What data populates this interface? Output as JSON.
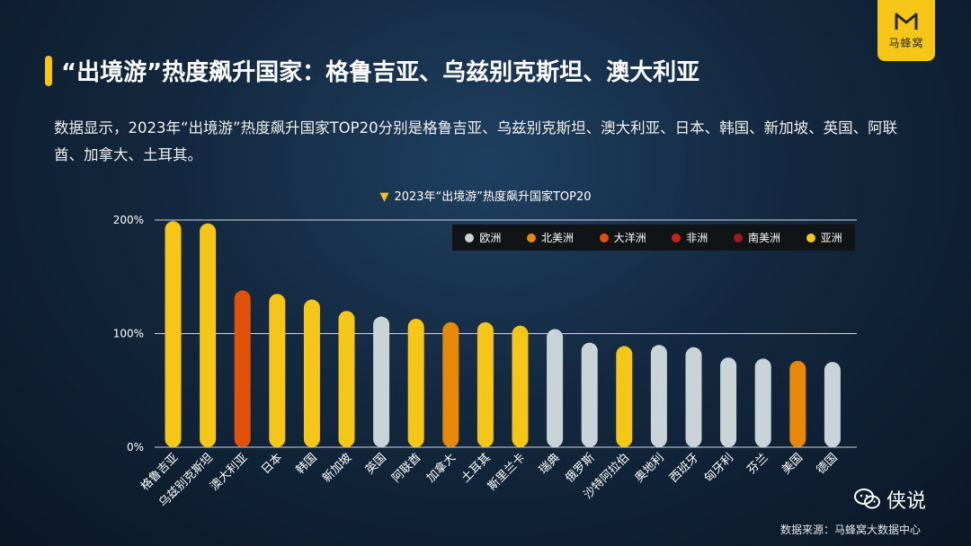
{
  "brand": {
    "logo_text": "马蜂窝"
  },
  "header": {
    "title": "“出境游”热度飙升国家：格鲁吉亚、乌兹别克斯坦、澳大利亚",
    "description": "数据显示，2023年“出境游”热度飙升国家TOP20分别是格鲁吉亚、乌兹别克斯坦、澳大利亚、日本、韩国、新加坡、英国、阿联酋、加拿大、土耳其。"
  },
  "footer": {
    "source": "数据来源：马蜂窝大数据中心",
    "watermark": "侠说"
  },
  "colors": {
    "欧洲": "#c9d3d8",
    "北美洲": "#e8880a",
    "大洋洲": "#e0520a",
    "非洲": "#c8241a",
    "南美洲": "#9e1a1a",
    "亚洲": "#f5c518"
  },
  "chart_data": {
    "type": "bar",
    "title": "2023年“出境游”热度飙升国家TOP20",
    "ylim": [
      0,
      200
    ],
    "yticks": [
      0,
      100,
      200
    ],
    "ytick_labels": [
      "0%",
      "100%",
      "200%"
    ],
    "grid": true,
    "legend_position": "top-right",
    "legend": [
      "欧洲",
      "北美洲",
      "大洋洲",
      "非洲",
      "南美洲",
      "亚洲"
    ],
    "categories": [
      "格鲁吉亚",
      "乌兹别克斯坦",
      "澳大利亚",
      "日本",
      "韩国",
      "新加坡",
      "英国",
      "阿联酋",
      "加拿大",
      "土耳其",
      "斯里兰卡",
      "瑞典",
      "俄罗斯",
      "沙特阿拉伯",
      "奥地利",
      "西班牙",
      "匈牙利",
      "芬兰",
      "美国",
      "德国"
    ],
    "values": [
      199,
      197,
      138,
      135,
      130,
      120,
      115,
      113,
      110,
      110,
      107,
      104,
      92,
      89,
      90,
      88,
      79,
      78,
      76,
      75
    ],
    "regions": [
      "亚洲",
      "亚洲",
      "大洋洲",
      "亚洲",
      "亚洲",
      "亚洲",
      "欧洲",
      "亚洲",
      "北美洲",
      "亚洲",
      "亚洲",
      "欧洲",
      "欧洲",
      "亚洲",
      "欧洲",
      "欧洲",
      "欧洲",
      "欧洲",
      "北美洲",
      "欧洲"
    ]
  }
}
